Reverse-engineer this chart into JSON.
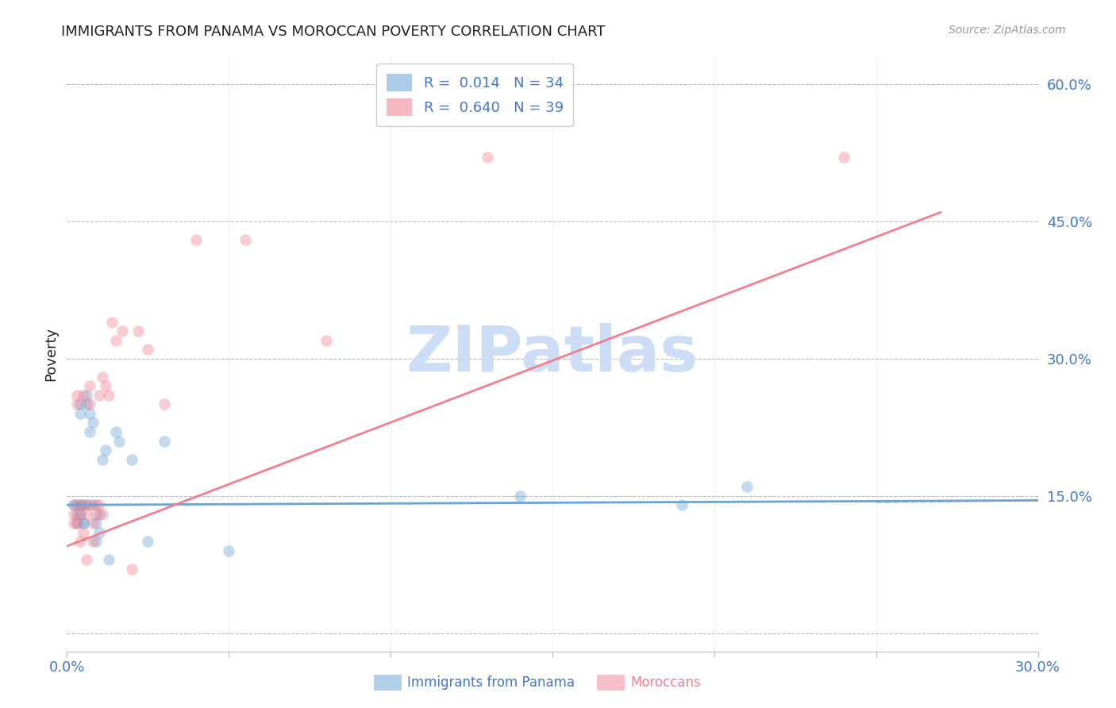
{
  "title": "IMMIGRANTS FROM PANAMA VS MOROCCAN POVERTY CORRELATION CHART",
  "source": "Source: ZipAtlas.com",
  "ylabel": "Poverty",
  "xlim": [
    0.0,
    0.3
  ],
  "ylim": [
    -0.02,
    0.63
  ],
  "yticks": [
    0.0,
    0.15,
    0.3,
    0.45,
    0.6
  ],
  "ytick_labels": [
    "",
    "15.0%",
    "30.0%",
    "45.0%",
    "60.0%"
  ],
  "xtick_positions": [
    0.0,
    0.05,
    0.1,
    0.15,
    0.2,
    0.25,
    0.3
  ],
  "xtick_labels": [
    "0.0%",
    "",
    "",
    "",
    "",
    "",
    "30.0%"
  ],
  "watermark": "ZIPatlas",
  "legend_entries": [
    {
      "label": "R =  0.014   N = 34",
      "color": "#6aa3d5"
    },
    {
      "label": "R =  0.640   N = 39",
      "color": "#f08090"
    }
  ],
  "panama_scatter_x": [
    0.002,
    0.003,
    0.003,
    0.003,
    0.004,
    0.004,
    0.004,
    0.004,
    0.005,
    0.005,
    0.005,
    0.006,
    0.006,
    0.006,
    0.007,
    0.007,
    0.008,
    0.008,
    0.009,
    0.009,
    0.01,
    0.01,
    0.011,
    0.012,
    0.013,
    0.015,
    0.016,
    0.02,
    0.025,
    0.03,
    0.05,
    0.14,
    0.19,
    0.21
  ],
  "panama_scatter_y": [
    0.14,
    0.14,
    0.13,
    0.12,
    0.25,
    0.24,
    0.14,
    0.13,
    0.14,
    0.12,
    0.12,
    0.26,
    0.25,
    0.14,
    0.24,
    0.22,
    0.23,
    0.14,
    0.12,
    0.1,
    0.11,
    0.13,
    0.19,
    0.2,
    0.08,
    0.22,
    0.21,
    0.19,
    0.1,
    0.21,
    0.09,
    0.15,
    0.14,
    0.16
  ],
  "morocco_scatter_x": [
    0.002,
    0.002,
    0.002,
    0.003,
    0.003,
    0.003,
    0.004,
    0.004,
    0.004,
    0.005,
    0.005,
    0.005,
    0.006,
    0.006,
    0.007,
    0.007,
    0.007,
    0.008,
    0.008,
    0.009,
    0.009,
    0.01,
    0.01,
    0.011,
    0.011,
    0.012,
    0.013,
    0.014,
    0.015,
    0.017,
    0.02,
    0.022,
    0.025,
    0.03,
    0.04,
    0.055,
    0.08,
    0.13,
    0.24
  ],
  "morocco_scatter_y": [
    0.14,
    0.13,
    0.12,
    0.26,
    0.25,
    0.12,
    0.14,
    0.13,
    0.1,
    0.26,
    0.14,
    0.11,
    0.13,
    0.08,
    0.27,
    0.25,
    0.14,
    0.12,
    0.1,
    0.14,
    0.13,
    0.26,
    0.14,
    0.28,
    0.13,
    0.27,
    0.26,
    0.34,
    0.32,
    0.33,
    0.07,
    0.33,
    0.31,
    0.25,
    0.43,
    0.43,
    0.32,
    0.52,
    0.52
  ],
  "panama_line_x": [
    0.0,
    0.3
  ],
  "panama_line_y": [
    0.14,
    0.145
  ],
  "morocco_line_x": [
    0.0,
    0.27
  ],
  "morocco_line_y": [
    0.095,
    0.46
  ],
  "panama_color": "#6aa3d5",
  "morocco_color": "#f08090",
  "scatter_size": 110,
  "scatter_alpha": 0.4,
  "background_color": "#ffffff",
  "grid_color": "#bbbbbb",
  "title_color": "#222222",
  "axis_label_color": "#4477cc",
  "watermark_color": "#ccddf5",
  "source_color": "#999999",
  "title_fontsize": 13,
  "source_fontsize": 10,
  "axis_fontsize": 13,
  "legend_fontsize": 13
}
